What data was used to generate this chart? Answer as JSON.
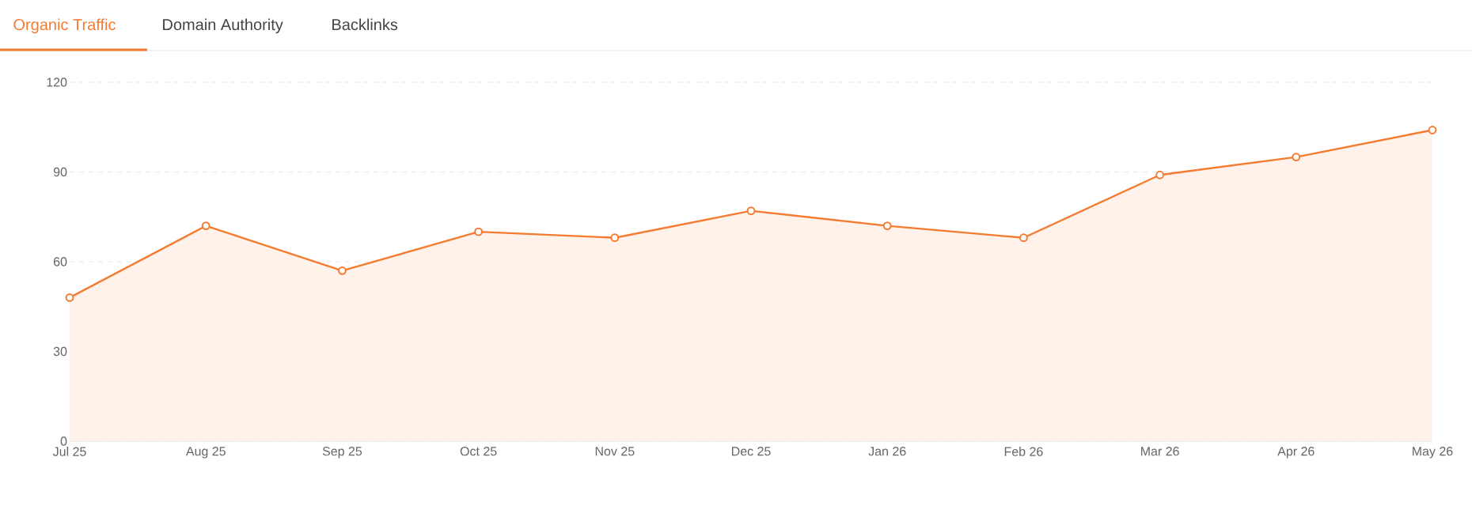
{
  "chart_data": {
    "type": "area",
    "categories": [
      "Jul 25",
      "Aug 25",
      "Sep 25",
      "Oct 25",
      "Nov 25",
      "Dec 25",
      "Jan 26",
      "Feb 26",
      "Mar 26",
      "Apr 26",
      "May 26"
    ],
    "series": [
      {
        "color": "#f47b30",
        "values": [
          48,
          72,
          57,
          70,
          68,
          77,
          72,
          68,
          89,
          95,
          104
        ]
      }
    ],
    "ylim": [
      0,
      120
    ],
    "yticks": [
      0,
      30,
      60,
      90,
      120
    ],
    "grid": "y",
    "marker": "circle",
    "line_style": "solid",
    "annotations": [
      "Organic Traffic",
      "Domain Authority",
      "Backlinks"
    ]
  }
}
